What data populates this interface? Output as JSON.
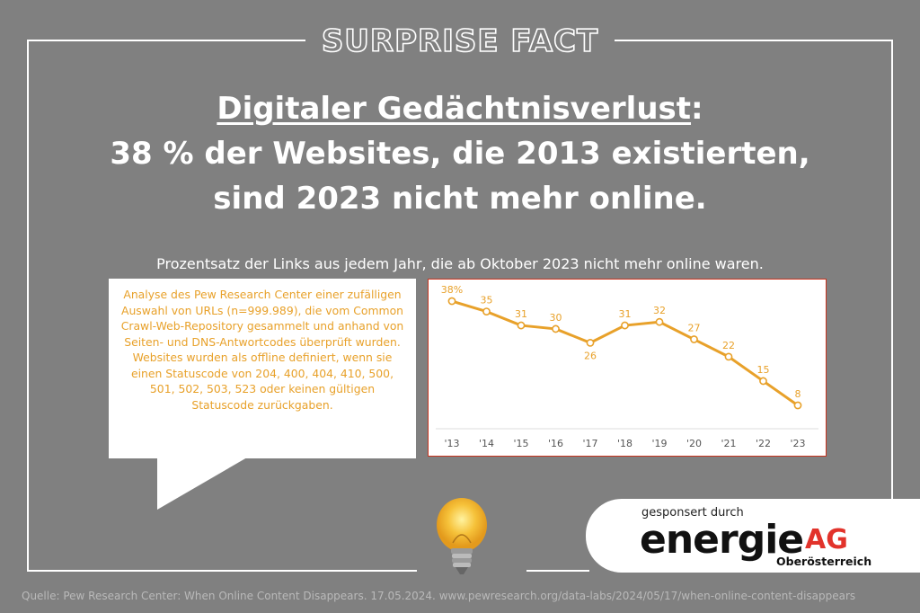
{
  "banner": "SURPRISE FACT",
  "headline": {
    "line1_underlined": "Digitaler Gedächtnisverlust",
    "line1_suffix": ":",
    "line2": "38 % der Websites, die 2013 existierten,",
    "line3": "sind 2023 nicht mehr online."
  },
  "subtitle": "Prozentsatz der Links aus jedem Jahr, die ab Oktober 2023 nicht mehr online waren.",
  "callout": {
    "text": "Analyse des Pew Research Center einer zufälligen Auswahl von URLs (n=999.989), die vom Common Crawl-Web-Repository gesammelt und anhand von Seiten- und DNS-Antwortcodes überprüft wurden. Websites wurden als offline definiert, wenn sie einen Statuscode von 204, 400, 404, 410, 500, 501, 502, 503, 523 oder keinen gültigen Statuscode zurückgaben."
  },
  "sponsor": {
    "label": "gesponsert durch",
    "logo_main": "energie",
    "logo_ag": "AG",
    "logo_region": "Oberösterreich"
  },
  "source": "Quelle: Pew Research Center: When Online Content Disappears. 17.05.2024. www.pewresearch.org/data-labs/2024/05/17/when-online-content-disappears",
  "colors": {
    "background": "#808080",
    "line": "#e8a12a",
    "chart_border": "#c8331e",
    "brand_red": "#e2332b"
  },
  "icons": {
    "bulb": "light-bulb-icon"
  },
  "chart_data": {
    "type": "line",
    "categories": [
      "'13",
      "'14",
      "'15",
      "'16",
      "'17",
      "'18",
      "'19",
      "'20",
      "'21",
      "'22",
      "'23"
    ],
    "values": [
      38,
      35,
      31,
      30,
      26,
      31,
      32,
      27,
      22,
      15,
      8
    ],
    "data_labels": [
      "38%",
      "35",
      "31",
      "30",
      "26",
      "31",
      "32",
      "27",
      "22",
      "15",
      "8"
    ],
    "title": "",
    "xlabel": "",
    "ylabel": "",
    "ylim": [
      8,
      38
    ],
    "grid": false,
    "legend": "none"
  }
}
